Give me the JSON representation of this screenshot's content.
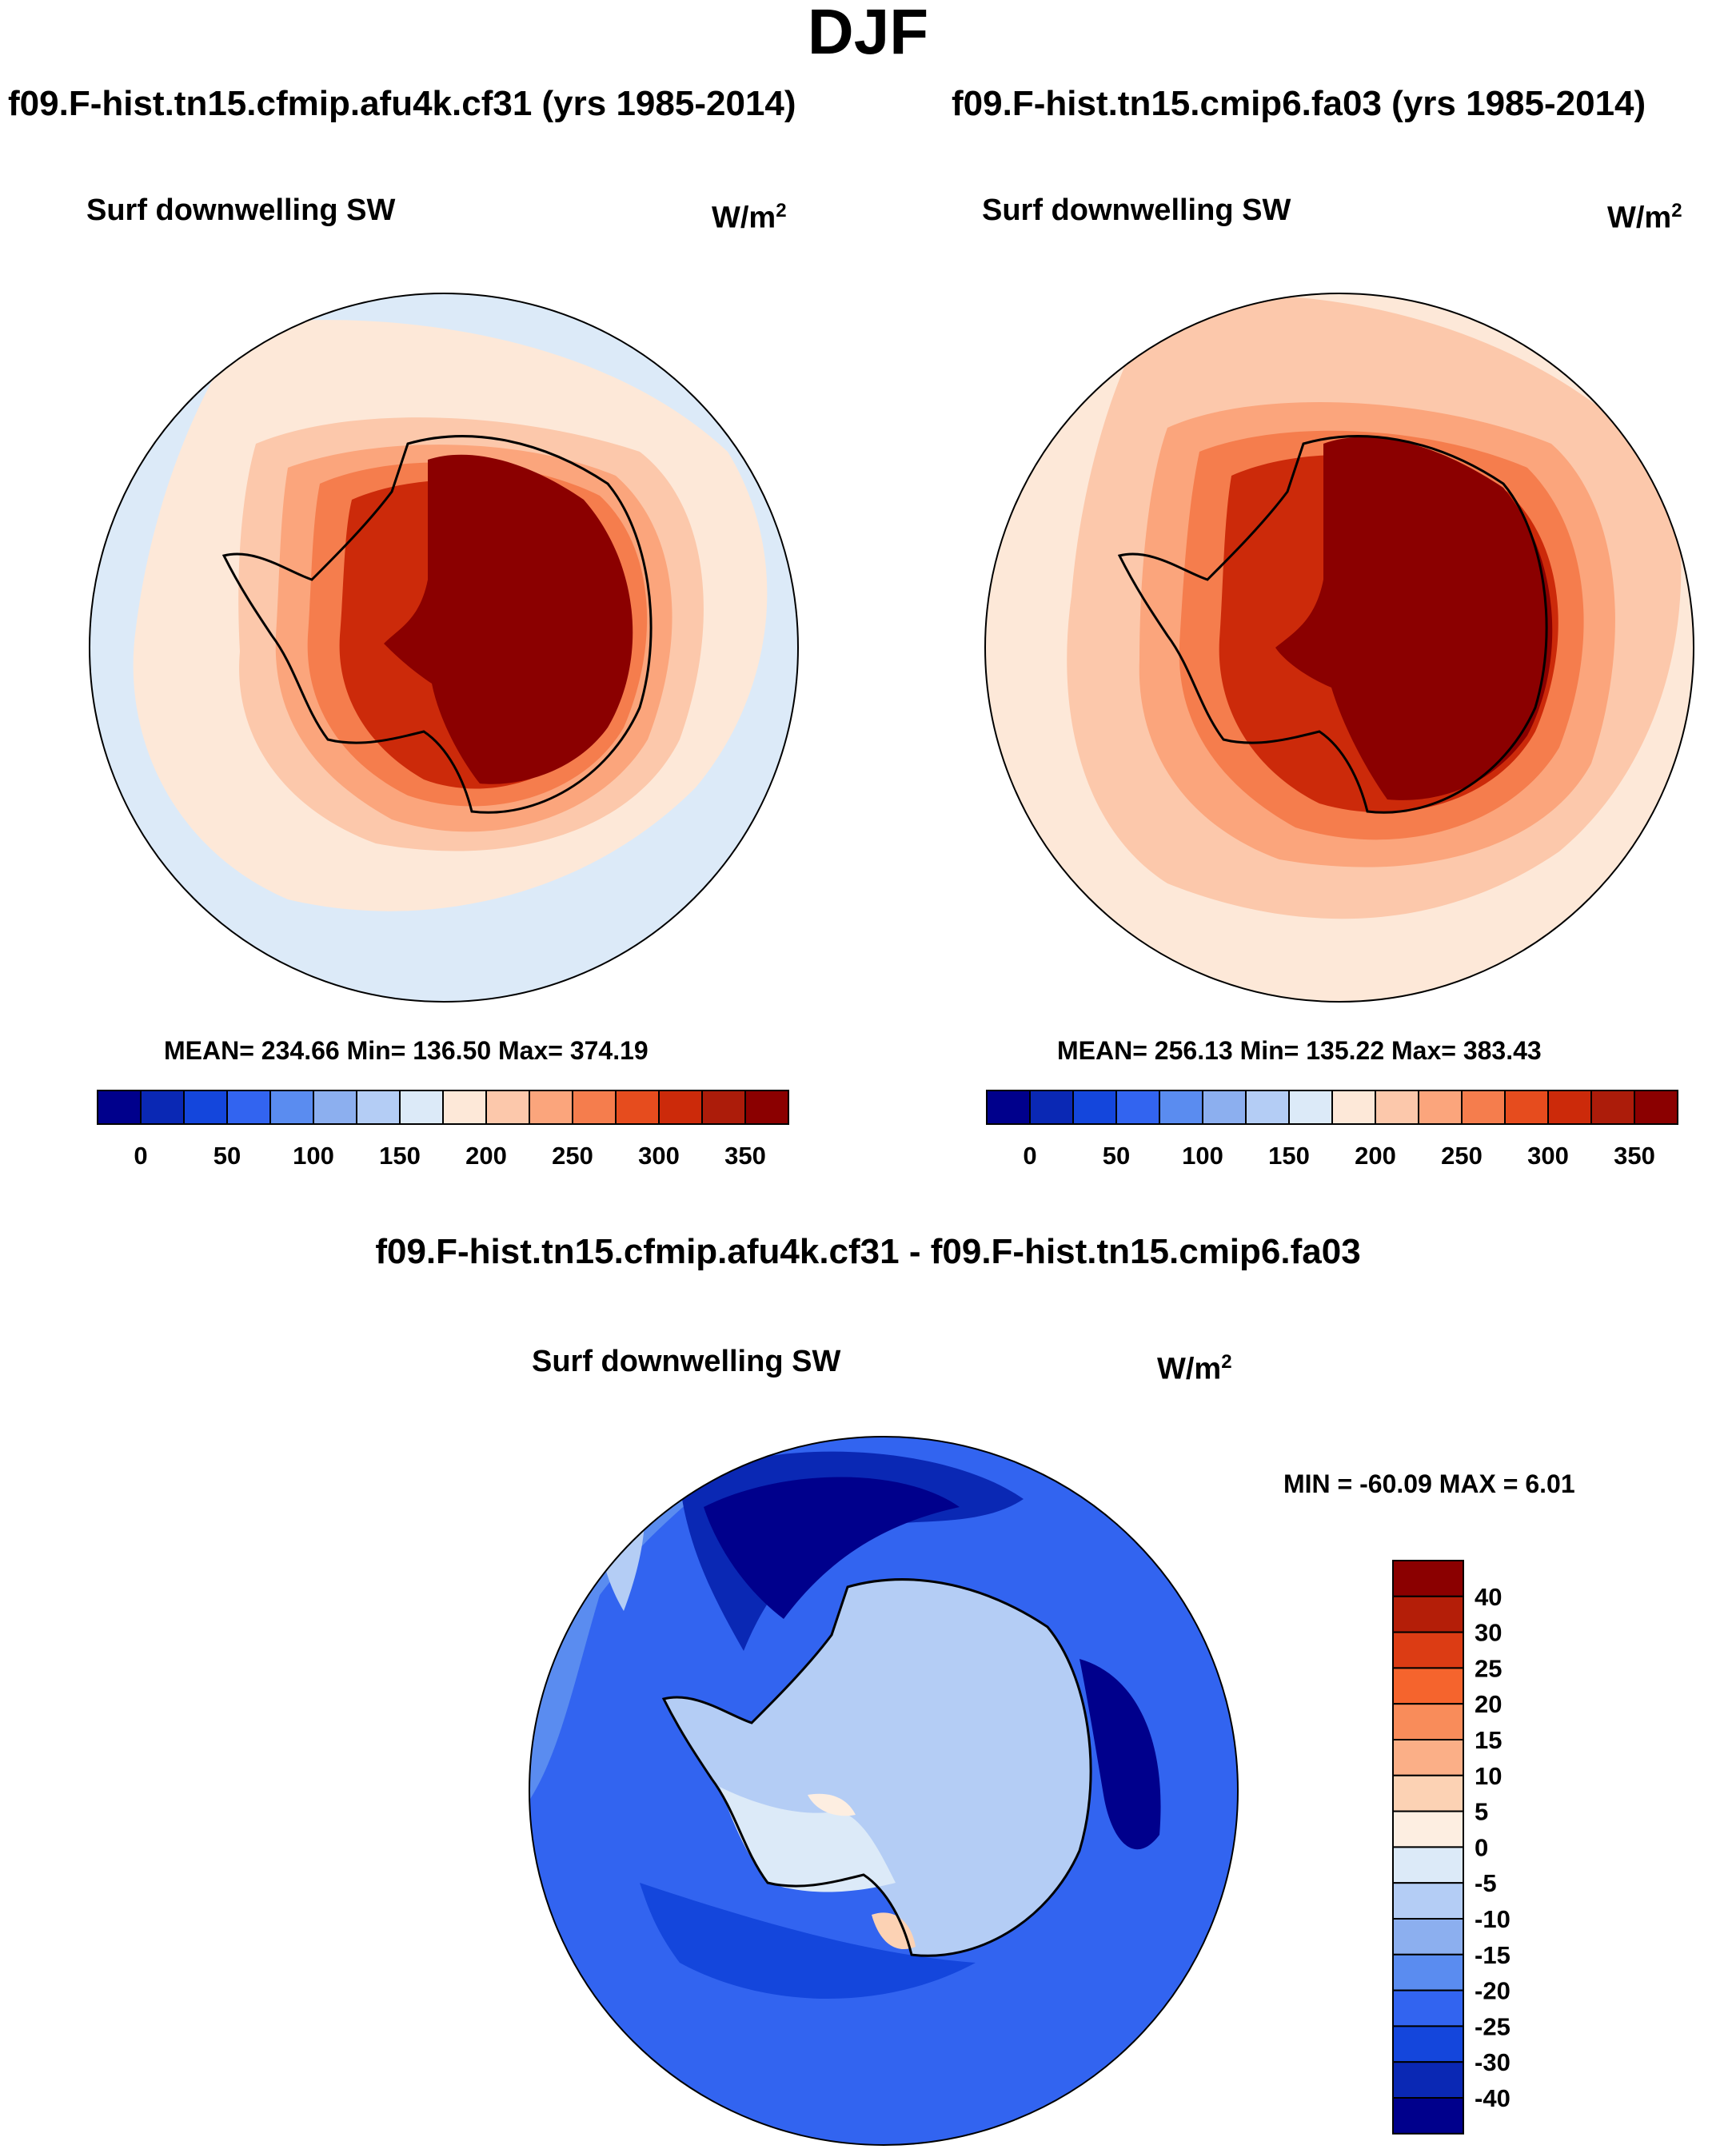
{
  "season": "DJF",
  "panels": [
    {
      "case_title": "f09.F-hist.tn15.cfmip.afu4k.cf31 (yrs 1985-2014)",
      "variable": "Surf downwelling SW",
      "units": "W/m",
      "units_exp": "2",
      "stats": "MEAN= 234.66  Min= 136.50  Max= 374.19"
    },
    {
      "case_title": "f09.F-hist.tn15.cmip6.fa03 (yrs 1985-2014)",
      "variable": "Surf downwelling SW",
      "units": "W/m",
      "units_exp": "2",
      "stats": "MEAN= 256.13  Min= 135.22  Max= 383.43"
    }
  ],
  "diff_panel": {
    "case_title": "f09.F-hist.tn15.cfmip.afu4k.cf31 - f09.F-hist.tn15.cmip6.fa03",
    "variable": "Surf downwelling SW",
    "units": "W/m",
    "units_exp": "2",
    "stats": "MIN = -60.09 MAX =   6.01"
  },
  "colorbar_abs": {
    "colors": [
      "#00008c",
      "#0a28b4",
      "#1446dc",
      "#3264f0",
      "#5a8cf0",
      "#8cafef",
      "#b4cdf5",
      "#dceaf8",
      "#fde8d8",
      "#fcc8ab",
      "#fba57c",
      "#f57d4d",
      "#e64c1e",
      "#cc2a0a",
      "#ac1c0a",
      "#8b0000"
    ],
    "tick_labels": [
      "0",
      "50",
      "100",
      "150",
      "200",
      "250",
      "300",
      "350"
    ]
  },
  "colorbar_diff": {
    "colors": [
      "#8b0000",
      "#b41e08",
      "#dc3c14",
      "#f5642d",
      "#f98c5a",
      "#fbaf87",
      "#fcd2b4",
      "#fdeee1",
      "#dceaf8",
      "#b4cdf5",
      "#8cafef",
      "#5a8cf0",
      "#3264f0",
      "#1446dc",
      "#0a28b4",
      "#00008c"
    ],
    "tick_labels": [
      "40",
      "30",
      "25",
      "20",
      "15",
      "10",
      "5",
      "0",
      "-5",
      "-10",
      "-15",
      "-20",
      "-25",
      "-30",
      "-40"
    ]
  }
}
